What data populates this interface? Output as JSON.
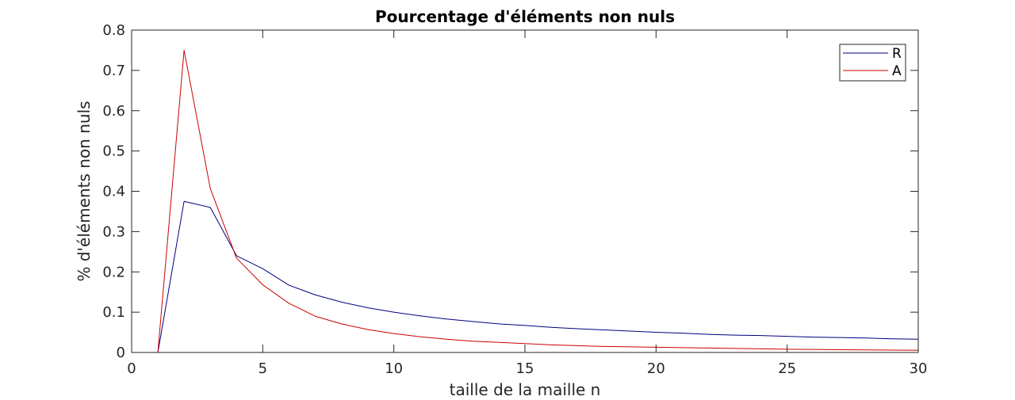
{
  "chart_data": {
    "type": "line",
    "title": "Pourcentage d'éléments non nuls",
    "xlabel": "taille de la maille n",
    "ylabel": "% d'éléments non nuls",
    "xlim": [
      0,
      30
    ],
    "ylim": [
      0,
      0.8
    ],
    "xticks": [
      0,
      5,
      10,
      15,
      20,
      25,
      30
    ],
    "xtick_labels": [
      "0",
      "5",
      "10",
      "15",
      "20",
      "25",
      "30"
    ],
    "yticks": [
      0,
      0.1,
      0.2,
      0.3,
      0.4,
      0.5,
      0.6,
      0.7,
      0.8
    ],
    "ytick_labels": [
      "0",
      "0.1",
      "0.2",
      "0.3",
      "0.4",
      "0.5",
      "0.6",
      "0.7",
      "0.8"
    ],
    "grid": false,
    "legend_position": "top-right",
    "x": [
      1,
      2,
      3,
      4,
      5,
      6,
      7,
      8,
      9,
      10,
      11,
      12,
      13,
      14,
      15,
      16,
      17,
      18,
      19,
      20,
      21,
      22,
      23,
      24,
      25,
      26,
      27,
      28,
      29,
      30
    ],
    "series": [
      {
        "name": "R",
        "color": "#000080",
        "values": [
          0,
          0.375,
          0.36,
          0.24,
          0.208,
          0.167,
          0.143,
          0.125,
          0.111,
          0.1,
          0.091,
          0.083,
          0.077,
          0.071,
          0.067,
          0.0625,
          0.059,
          0.056,
          0.053,
          0.05,
          0.048,
          0.045,
          0.043,
          0.042,
          0.04,
          0.038,
          0.037,
          0.036,
          0.034,
          0.033
        ]
      },
      {
        "name": "A",
        "color": "#cc0000",
        "values": [
          0,
          0.75,
          0.407,
          0.234,
          0.168,
          0.122,
          0.09,
          0.071,
          0.057,
          0.047,
          0.039,
          0.033,
          0.028,
          0.025,
          0.022,
          0.019,
          0.017,
          0.015,
          0.014,
          0.013,
          0.012,
          0.011,
          0.01,
          0.009,
          0.008,
          0.0075,
          0.007,
          0.0065,
          0.006,
          0.0055
        ]
      }
    ]
  }
}
